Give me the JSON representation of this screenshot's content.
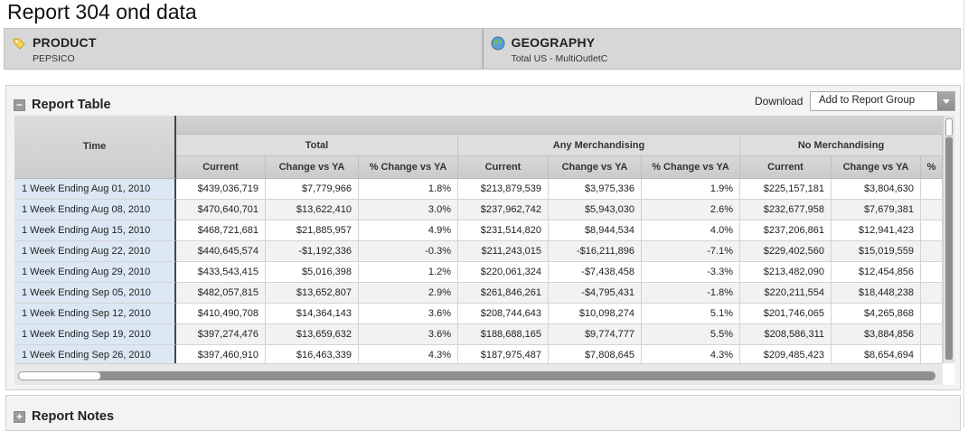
{
  "page": {
    "title": "Report 304 ond data"
  },
  "filters": [
    {
      "label": "PRODUCT",
      "value": "PEPSICO",
      "icon": "tag-icon"
    },
    {
      "label": "GEOGRAPHY",
      "value": "Total US - MultiOutletC",
      "icon": "globe-icon"
    }
  ],
  "report_table": {
    "title": "Report Table",
    "collapse_symbol": "−",
    "download_label": "Download",
    "dropdown_value": "Add to Report Group",
    "row_header": "Time",
    "groups": [
      "Total",
      "Any Merchandising",
      "No Merchandising"
    ],
    "columns": [
      "Current",
      "Change vs YA",
      "% Change vs YA",
      "Current",
      "Change vs YA",
      "% Change vs YA",
      "Current",
      "Change vs YA",
      "%"
    ],
    "rows": [
      {
        "time": "1 Week Ending Aug 01, 2010",
        "values": [
          "$439,036,719",
          "$7,779,966",
          "1.8%",
          "$213,879,539",
          "$3,975,336",
          "1.9%",
          "$225,157,181",
          "$3,804,630",
          ""
        ]
      },
      {
        "time": "1 Week Ending Aug 08, 2010",
        "values": [
          "$470,640,701",
          "$13,622,410",
          "3.0%",
          "$237,962,742",
          "$5,943,030",
          "2.6%",
          "$232,677,958",
          "$7,679,381",
          ""
        ]
      },
      {
        "time": "1 Week Ending Aug 15, 2010",
        "values": [
          "$468,721,681",
          "$21,885,957",
          "4.9%",
          "$231,514,820",
          "$8,944,534",
          "4.0%",
          "$237,206,861",
          "$12,941,423",
          ""
        ]
      },
      {
        "time": "1 Week Ending Aug 22, 2010",
        "values": [
          "$440,645,574",
          "-$1,192,336",
          "-0.3%",
          "$211,243,015",
          "-$16,211,896",
          "-7.1%",
          "$229,402,560",
          "$15,019,559",
          ""
        ]
      },
      {
        "time": "1 Week Ending Aug 29, 2010",
        "values": [
          "$433,543,415",
          "$5,016,398",
          "1.2%",
          "$220,061,324",
          "-$7,438,458",
          "-3.3%",
          "$213,482,090",
          "$12,454,856",
          ""
        ]
      },
      {
        "time": "1 Week Ending Sep 05, 2010",
        "values": [
          "$482,057,815",
          "$13,652,807",
          "2.9%",
          "$261,846,261",
          "-$4,795,431",
          "-1.8%",
          "$220,211,554",
          "$18,448,238",
          ""
        ]
      },
      {
        "time": "1 Week Ending Sep 12, 2010",
        "values": [
          "$410,490,708",
          "$14,364,143",
          "3.6%",
          "$208,744,643",
          "$10,098,274",
          "5.1%",
          "$201,746,065",
          "$4,265,868",
          ""
        ]
      },
      {
        "time": "1 Week Ending Sep 19, 2010",
        "values": [
          "$397,274,476",
          "$13,659,632",
          "3.6%",
          "$188,688,165",
          "$9,774,777",
          "5.5%",
          "$208,586,311",
          "$3,884,856",
          ""
        ]
      },
      {
        "time": "1 Week Ending Sep 26, 2010",
        "values": [
          "$397,460,910",
          "$16,463,339",
          "4.3%",
          "$187,975,487",
          "$7,808,645",
          "4.3%",
          "$209,485,423",
          "$8,654,694",
          ""
        ]
      }
    ]
  },
  "report_notes": {
    "title": "Report Notes",
    "expand_symbol": "+"
  }
}
